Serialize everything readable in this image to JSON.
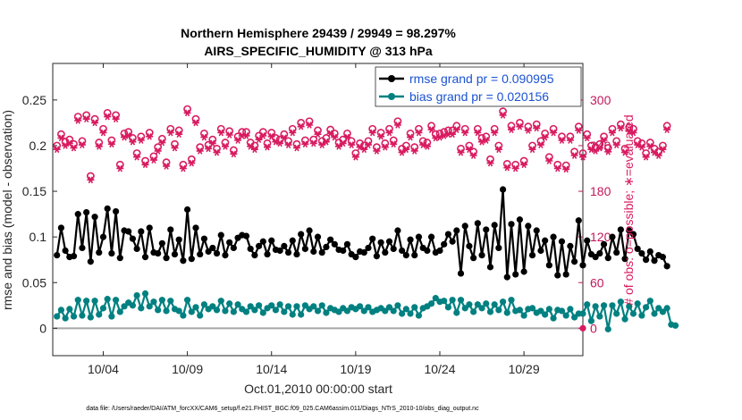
{
  "chart_data": {
    "type": "line",
    "title_line1": "Northern Hemisphere 29439 / 29949 = 98.297%",
    "title_line2": "AIRS_SPECIFIC_HUMIDITY @ 313 hPa",
    "xlabel": "Oct.01,2010 00:00:00 start",
    "ylabel_left": "rmse and bias (model - observation)",
    "ylabel_right": "# of obs: o=possible; ∗=evaluated",
    "footnote": "data file: /Users/raeder/DAI/ATM_forcXX/CAM6_setup/f.e21.FHIST_BGC.f09_025.CAM6assim.011/Diags_NTrS_2010-10/obs_diag_output.nc",
    "xlim": [
      1.0,
      32.5
    ],
    "ylim_left": [
      -0.03,
      0.29
    ],
    "ylim_right": [
      -36,
      348
    ],
    "x_ticks": [
      4,
      9,
      14,
      19,
      24,
      29
    ],
    "x_tick_labels": [
      "10/04",
      "10/09",
      "10/14",
      "10/19",
      "10/24",
      "10/29"
    ],
    "y_ticks_left": [
      0,
      0.05,
      0.1,
      0.15,
      0.2,
      0.25
    ],
    "y_tick_labels_left": [
      "0",
      "0.05",
      "0.1",
      "0.15",
      "0.2",
      "0.25"
    ],
    "y_ticks_right": [
      0,
      60,
      120,
      180,
      240,
      300
    ],
    "y_tick_labels_right": [
      "0",
      "60",
      "120",
      "180",
      "240",
      "300"
    ],
    "legend": [
      {
        "name": "rmse grand pr = 0.090995",
        "color": "#000000"
      },
      {
        "name": "bias grand pr = 0.020156",
        "color": "#008080"
      }
    ],
    "series": [
      {
        "name": "rmse",
        "color": "#000000",
        "axis": "left",
        "x0": 1.25,
        "dx": 0.25,
        "values": [
          0.08,
          0.11,
          0.085,
          0.078,
          0.079,
          0.125,
          0.088,
          0.127,
          0.073,
          0.122,
          0.083,
          0.1,
          0.131,
          0.082,
          0.128,
          0.077,
          0.107,
          0.106,
          0.098,
          0.087,
          0.106,
          0.078,
          0.11,
          0.083,
          0.082,
          0.093,
          0.077,
          0.108,
          0.081,
          0.097,
          0.074,
          0.13,
          0.076,
          0.11,
          0.081,
          0.098,
          0.084,
          0.088,
          0.082,
          0.102,
          0.08,
          0.094,
          0.088,
          0.099,
          0.102,
          0.101,
          0.087,
          0.08,
          0.09,
          0.095,
          0.081,
          0.096,
          0.086,
          0.085,
          0.09,
          0.083,
          0.096,
          0.081,
          0.103,
          0.087,
          0.107,
          0.084,
          0.1,
          0.083,
          0.089,
          0.097,
          0.092,
          0.086,
          0.085,
          0.092,
          0.081,
          0.078,
          0.084,
          0.083,
          0.088,
          0.098,
          0.079,
          0.094,
          0.083,
          0.095,
          0.087,
          0.107,
          0.085,
          0.08,
          0.097,
          0.08,
          0.1,
          0.088,
          0.085,
          0.1,
          0.083,
          0.085,
          0.092,
          0.103,
          0.095,
          0.107,
          0.06,
          0.112,
          0.09,
          0.077,
          0.115,
          0.08,
          0.108,
          0.067,
          0.113,
          0.088,
          0.152,
          0.056,
          0.114,
          0.059,
          0.119,
          0.062,
          0.112,
          0.08,
          0.107,
          0.085,
          0.096,
          0.069,
          0.1,
          0.058,
          0.095,
          0.059,
          0.09,
          0.073,
          0.118,
          0.069,
          0.096,
          0.081,
          0.078,
          0.082,
          0.092,
          0.077,
          0.1,
          0.083,
          0.108,
          0.076,
          0.107,
          0.103,
          0.087,
          0.082,
          0.075,
          0.084,
          0.074,
          0.08,
          0.078,
          0.068
        ]
      },
      {
        "name": "bias",
        "color": "#008080",
        "axis": "left",
        "x0": 1.25,
        "dx": 0.25,
        "values": [
          0.013,
          0.02,
          0.011,
          0.021,
          0.013,
          0.031,
          0.014,
          0.03,
          0.012,
          0.03,
          0.015,
          0.022,
          0.032,
          0.013,
          0.031,
          0.018,
          0.024,
          0.028,
          0.025,
          0.036,
          0.022,
          0.038,
          0.024,
          0.029,
          0.02,
          0.031,
          0.019,
          0.03,
          0.021,
          0.019,
          0.014,
          0.031,
          0.018,
          0.023,
          0.014,
          0.026,
          0.021,
          0.024,
          0.02,
          0.03,
          0.019,
          0.027,
          0.018,
          0.026,
          0.021,
          0.018,
          0.024,
          0.02,
          0.025,
          0.017,
          0.022,
          0.025,
          0.02,
          0.026,
          0.018,
          0.024,
          0.015,
          0.024,
          0.015,
          0.025,
          0.021,
          0.024,
          0.019,
          0.025,
          0.017,
          0.022,
          0.02,
          0.018,
          0.022,
          0.019,
          0.023,
          0.021,
          0.024,
          0.019,
          0.023,
          0.018,
          0.02,
          0.022,
          0.019,
          0.023,
          0.019,
          0.025,
          0.016,
          0.021,
          0.016,
          0.023,
          0.014,
          0.022,
          0.024,
          0.027,
          0.033,
          0.029,
          0.03,
          0.023,
          0.031,
          0.017,
          0.031,
          0.022,
          0.026,
          0.018,
          0.026,
          0.022,
          0.027,
          0.018,
          0.026,
          0.02,
          0.029,
          0.017,
          0.031,
          0.019,
          0.02,
          0.014,
          0.021,
          0.022,
          0.017,
          0.019,
          0.015,
          0.021,
          0.011,
          0.02,
          0.019,
          0.014,
          0.021,
          0.012,
          0.016,
          0.016,
          0.026,
          0.008,
          0.024,
          0.013,
          0.025,
          -0.001,
          0.025,
          0.016,
          0.029,
          0.01,
          0.024,
          0.016,
          0.027,
          0.014,
          0.023,
          0.03,
          0.016,
          0.022,
          0.018,
          0.022,
          0.004,
          0.003
        ]
      },
      {
        "name": "obs possible",
        "color": "#d81b60",
        "axis": "right",
        "marker": "o",
        "x0": 1.25,
        "dx": 0.25,
        "values": [
          240,
          255,
          245,
          248,
          242,
          278,
          246,
          280,
          200,
          275,
          244,
          262,
          283,
          247,
          280,
          215,
          256,
          258,
          250,
          230,
          252,
          220,
          257,
          226,
          238,
          249,
          218,
          262,
          242,
          260,
          215,
          288,
          222,
          275,
          238,
          256,
          241,
          248,
          236,
          262,
          244,
          259,
          234,
          252,
          258,
          258,
          244,
          240,
          253,
          258,
          243,
          257,
          250,
          248,
          255,
          246,
          262,
          242,
          270,
          247,
          272,
          248,
          260,
          246,
          250,
          261,
          256,
          244,
          248,
          256,
          246,
          230,
          243,
          240,
          246,
          262,
          238,
          257,
          243,
          262,
          247,
          272,
          236,
          240,
          256,
          238,
          262,
          246,
          244,
          266,
          255,
          256,
          258,
          260,
          260,
          266,
          236,
          262,
          240,
          232,
          262,
          250,
          252,
          222,
          262,
          240,
          285,
          216,
          266,
          215,
          270,
          220,
          265,
          240,
          268,
          246,
          256,
          225,
          262,
          215,
          252,
          214,
          252,
          232,
          265,
          230,
          255,
          240,
          238,
          242,
          252,
          237,
          262,
          246,
          268,
          236,
          264,
          262,
          246,
          243,
          230,
          244,
          236,
          232,
          240,
          266
        ]
      },
      {
        "name": "obs evaluated",
        "color": "#d81b60",
        "axis": "right",
        "marker": "*",
        "x0": 1.25,
        "dx": 0.25,
        "values": [
          235,
          250,
          240,
          243,
          237,
          273,
          241,
          275,
          195,
          270,
          239,
          257,
          278,
          242,
          275,
          210,
          251,
          253,
          245,
          225,
          247,
          215,
          252,
          221,
          233,
          244,
          213,
          257,
          237,
          255,
          210,
          283,
          217,
          270,
          233,
          251,
          236,
          243,
          231,
          257,
          239,
          254,
          229,
          247,
          253,
          253,
          239,
          235,
          248,
          253,
          238,
          252,
          245,
          243,
          250,
          241,
          257,
          237,
          265,
          242,
          267,
          243,
          255,
          241,
          245,
          256,
          251,
          239,
          243,
          251,
          241,
          225,
          238,
          235,
          241,
          257,
          233,
          252,
          238,
          257,
          242,
          267,
          231,
          235,
          251,
          233,
          257,
          241,
          239,
          261,
          250,
          251,
          253,
          255,
          255,
          261,
          231,
          257,
          235,
          227,
          257,
          245,
          247,
          217,
          257,
          235,
          280,
          211,
          261,
          210,
          265,
          215,
          260,
          235,
          263,
          241,
          251,
          220,
          257,
          210,
          247,
          209,
          247,
          227,
          260,
          225,
          250,
          235,
          233,
          237,
          247,
          232,
          257,
          241,
          263,
          231,
          259,
          257,
          241,
          238,
          225,
          239,
          231,
          227,
          235,
          261
        ]
      }
    ]
  }
}
